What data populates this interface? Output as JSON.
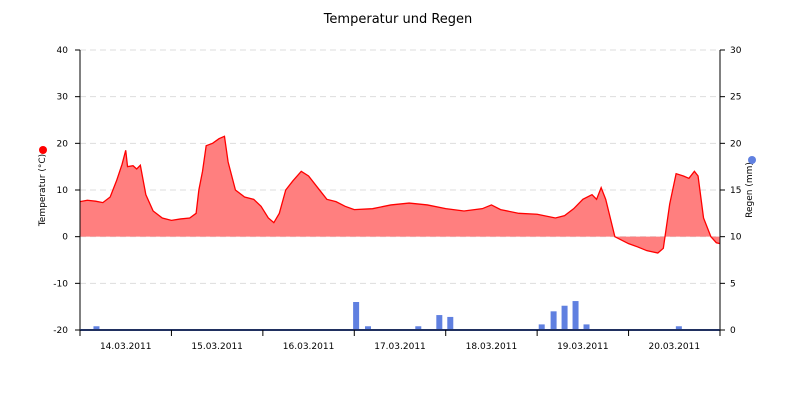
{
  "chart_data": {
    "type": "area",
    "title": "Temperatur und Regen",
    "x_categories": [
      "14.03.2011",
      "15.03.2011",
      "16.03.2011",
      "17.03.2011",
      "18.03.2011",
      "19.03.2011",
      "20.03.2011"
    ],
    "y_left": {
      "label": "Temperatur (°C)",
      "min": -20,
      "max": 40,
      "ticks": [
        40,
        30,
        20,
        10,
        0,
        -10,
        -20
      ]
    },
    "y_right": {
      "label": "Regen (mm)",
      "min": 0,
      "max": 30,
      "ticks": [
        30,
        25,
        20,
        15,
        10,
        5,
        0
      ]
    },
    "grid": true,
    "legend": "axis-markers",
    "series": [
      {
        "name": "Temperatur (°C)",
        "axis": "left",
        "type": "area",
        "color": "#ff0000",
        "fill": "#ff7f7f",
        "x_range_days": [
          0,
          7
        ],
        "points": [
          [
            0.0,
            7.5
          ],
          [
            0.08,
            7.8
          ],
          [
            0.17,
            7.6
          ],
          [
            0.25,
            7.3
          ],
          [
            0.33,
            8.5
          ],
          [
            0.4,
            12.0
          ],
          [
            0.46,
            15.5
          ],
          [
            0.5,
            18.5
          ],
          [
            0.52,
            15.0
          ],
          [
            0.58,
            15.2
          ],
          [
            0.62,
            14.5
          ],
          [
            0.66,
            15.3
          ],
          [
            0.72,
            9.0
          ],
          [
            0.8,
            5.5
          ],
          [
            0.9,
            4.0
          ],
          [
            1.0,
            3.5
          ],
          [
            1.1,
            3.8
          ],
          [
            1.2,
            4.0
          ],
          [
            1.27,
            5.0
          ],
          [
            1.3,
            10.0
          ],
          [
            1.34,
            14.0
          ],
          [
            1.38,
            19.5
          ],
          [
            1.45,
            20.0
          ],
          [
            1.52,
            21.0
          ],
          [
            1.58,
            21.5
          ],
          [
            1.62,
            16.0
          ],
          [
            1.7,
            10.0
          ],
          [
            1.8,
            8.5
          ],
          [
            1.9,
            8.0
          ],
          [
            1.98,
            6.5
          ],
          [
            2.06,
            4.0
          ],
          [
            2.12,
            3.0
          ],
          [
            2.18,
            5.0
          ],
          [
            2.25,
            10.0
          ],
          [
            2.33,
            12.0
          ],
          [
            2.42,
            14.0
          ],
          [
            2.5,
            13.0
          ],
          [
            2.6,
            10.5
          ],
          [
            2.7,
            8.0
          ],
          [
            2.8,
            7.5
          ],
          [
            2.9,
            6.5
          ],
          [
            3.0,
            5.8
          ],
          [
            3.2,
            6.0
          ],
          [
            3.4,
            6.8
          ],
          [
            3.6,
            7.2
          ],
          [
            3.8,
            6.8
          ],
          [
            4.0,
            6.0
          ],
          [
            4.2,
            5.5
          ],
          [
            4.4,
            6.0
          ],
          [
            4.5,
            6.8
          ],
          [
            4.6,
            5.8
          ],
          [
            4.8,
            5.0
          ],
          [
            5.0,
            4.8
          ],
          [
            5.2,
            4.0
          ],
          [
            5.3,
            4.5
          ],
          [
            5.4,
            6.0
          ],
          [
            5.5,
            8.0
          ],
          [
            5.6,
            9.0
          ],
          [
            5.65,
            8.0
          ],
          [
            5.7,
            10.5
          ],
          [
            5.75,
            8.0
          ],
          [
            5.85,
            0.0
          ],
          [
            6.0,
            -1.5
          ],
          [
            6.1,
            -2.2
          ],
          [
            6.2,
            -3.0
          ],
          [
            6.32,
            -3.5
          ],
          [
            6.38,
            -2.5
          ],
          [
            6.45,
            7.0
          ],
          [
            6.52,
            13.5
          ],
          [
            6.6,
            13.0
          ],
          [
            6.66,
            12.5
          ],
          [
            6.72,
            14.0
          ],
          [
            6.76,
            13.0
          ],
          [
            6.82,
            4.0
          ],
          [
            6.9,
            0.0
          ],
          [
            6.96,
            -1.3
          ],
          [
            7.0,
            -1.5
          ]
        ]
      },
      {
        "name": "Regen (mm)",
        "axis": "right",
        "type": "bar",
        "color": "#6080e0",
        "x_range_days": [
          0,
          7
        ],
        "points": [
          [
            0.18,
            0.4
          ],
          [
            3.02,
            3.0
          ],
          [
            3.15,
            0.4
          ],
          [
            3.7,
            0.4
          ],
          [
            3.93,
            1.6
          ],
          [
            4.05,
            1.4
          ],
          [
            5.05,
            0.6
          ],
          [
            5.18,
            2.0
          ],
          [
            5.3,
            2.6
          ],
          [
            5.42,
            3.1
          ],
          [
            5.54,
            0.6
          ],
          [
            6.55,
            0.4
          ]
        ]
      }
    ]
  }
}
